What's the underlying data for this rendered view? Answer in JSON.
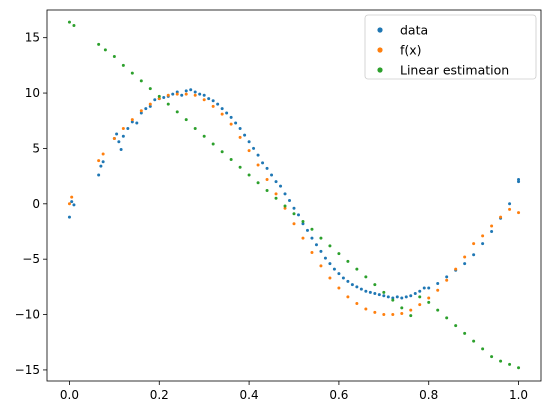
{
  "chart_data": {
    "type": "scatter",
    "title": "",
    "xlabel": "",
    "ylabel": "",
    "xlim": [
      -0.05,
      1.05
    ],
    "ylim": [
      -16.0,
      17.5
    ],
    "xticks": [
      0.0,
      0.2,
      0.4,
      0.6,
      0.8,
      1.0
    ],
    "xtick_labels": [
      "0.0",
      "0.2",
      "0.4",
      "0.6",
      "0.8",
      "1.0"
    ],
    "yticks": [
      15,
      10,
      5,
      0,
      -5,
      -10,
      -15
    ],
    "ytick_labels": [
      "15",
      "10",
      "5",
      "0",
      "−5",
      "−10",
      "−15"
    ],
    "grid": false,
    "legend_position": "top-right",
    "series": [
      {
        "name": "data",
        "color": "#1f77b4",
        "points": [
          [
            0.0,
            -1.2
          ],
          [
            0.005,
            0.2
          ],
          [
            0.01,
            -0.1
          ],
          [
            0.065,
            2.6
          ],
          [
            0.07,
            3.4
          ],
          [
            0.075,
            3.8
          ],
          [
            0.1,
            5.9
          ],
          [
            0.105,
            6.3
          ],
          [
            0.11,
            5.6
          ],
          [
            0.115,
            4.9
          ],
          [
            0.12,
            6.1
          ],
          [
            0.13,
            6.8
          ],
          [
            0.14,
            7.4
          ],
          [
            0.15,
            7.3
          ],
          [
            0.16,
            8.2
          ],
          [
            0.17,
            8.6
          ],
          [
            0.18,
            8.8
          ],
          [
            0.19,
            9.4
          ],
          [
            0.2,
            9.5
          ],
          [
            0.21,
            9.6
          ],
          [
            0.22,
            9.7
          ],
          [
            0.23,
            9.9
          ],
          [
            0.24,
            10.1
          ],
          [
            0.25,
            9.8
          ],
          [
            0.26,
            10.2
          ],
          [
            0.27,
            10.3
          ],
          [
            0.28,
            10.1
          ],
          [
            0.29,
            9.9
          ],
          [
            0.3,
            9.8
          ],
          [
            0.31,
            9.5
          ],
          [
            0.32,
            9.3
          ],
          [
            0.33,
            9.0
          ],
          [
            0.34,
            8.6
          ],
          [
            0.35,
            8.2
          ],
          [
            0.36,
            7.8
          ],
          [
            0.37,
            7.3
          ],
          [
            0.38,
            6.8
          ],
          [
            0.39,
            6.2
          ],
          [
            0.4,
            5.6
          ],
          [
            0.41,
            5.0
          ],
          [
            0.42,
            4.4
          ],
          [
            0.43,
            3.7
          ],
          [
            0.44,
            3.2
          ],
          [
            0.45,
            2.6
          ],
          [
            0.46,
            2.0
          ],
          [
            0.47,
            1.6
          ],
          [
            0.48,
            0.9
          ],
          [
            0.49,
            0.3
          ],
          [
            0.5,
            -0.4
          ],
          [
            0.51,
            -1.0
          ],
          [
            0.52,
            -1.8
          ],
          [
            0.53,
            -2.4
          ],
          [
            0.54,
            -3.1
          ],
          [
            0.55,
            -3.7
          ],
          [
            0.56,
            -4.3
          ],
          [
            0.57,
            -4.9
          ],
          [
            0.58,
            -5.4
          ],
          [
            0.59,
            -5.9
          ],
          [
            0.6,
            -6.3
          ],
          [
            0.61,
            -6.7
          ],
          [
            0.62,
            -7.0
          ],
          [
            0.63,
            -7.3
          ],
          [
            0.64,
            -7.5
          ],
          [
            0.65,
            -7.7
          ],
          [
            0.66,
            -7.9
          ],
          [
            0.67,
            -8.0
          ],
          [
            0.68,
            -8.1
          ],
          [
            0.69,
            -8.2
          ],
          [
            0.7,
            -8.3
          ],
          [
            0.71,
            -8.4
          ],
          [
            0.72,
            -8.5
          ],
          [
            0.73,
            -8.4
          ],
          [
            0.74,
            -8.5
          ],
          [
            0.75,
            -8.4
          ],
          [
            0.76,
            -8.3
          ],
          [
            0.77,
            -8.1
          ],
          [
            0.78,
            -7.9
          ],
          [
            0.79,
            -7.6
          ],
          [
            0.8,
            -7.6
          ],
          [
            0.82,
            -7.2
          ],
          [
            0.84,
            -6.6
          ],
          [
            0.86,
            -6.0
          ],
          [
            0.88,
            -5.4
          ],
          [
            0.9,
            -4.6
          ],
          [
            0.92,
            -3.6
          ],
          [
            0.94,
            -2.5
          ],
          [
            0.96,
            -1.3
          ],
          [
            0.98,
            0.0
          ],
          [
            1.0,
            2.0
          ],
          [
            1.0,
            2.2
          ]
        ]
      },
      {
        "name": "f(x)",
        "color": "#ff7f0e",
        "points": [
          [
            0.0,
            0.0
          ],
          [
            0.005,
            0.6
          ],
          [
            0.065,
            3.9
          ],
          [
            0.075,
            4.5
          ],
          [
            0.1,
            5.9
          ],
          [
            0.12,
            6.8
          ],
          [
            0.14,
            7.6
          ],
          [
            0.16,
            8.4
          ],
          [
            0.18,
            9.0
          ],
          [
            0.2,
            9.5
          ],
          [
            0.22,
            9.8
          ],
          [
            0.24,
            9.9
          ],
          [
            0.26,
            9.9
          ],
          [
            0.28,
            9.8
          ],
          [
            0.3,
            9.4
          ],
          [
            0.32,
            8.8
          ],
          [
            0.34,
            8.1
          ],
          [
            0.36,
            7.2
          ],
          [
            0.38,
            6.0
          ],
          [
            0.4,
            4.8
          ],
          [
            0.42,
            3.5
          ],
          [
            0.44,
            2.2
          ],
          [
            0.46,
            0.9
          ],
          [
            0.48,
            -0.4
          ],
          [
            0.5,
            -1.8
          ],
          [
            0.52,
            -3.1
          ],
          [
            0.54,
            -4.4
          ],
          [
            0.56,
            -5.6
          ],
          [
            0.58,
            -6.7
          ],
          [
            0.6,
            -7.6
          ],
          [
            0.62,
            -8.4
          ],
          [
            0.64,
            -9.0
          ],
          [
            0.66,
            -9.5
          ],
          [
            0.68,
            -9.8
          ],
          [
            0.7,
            -10.0
          ],
          [
            0.72,
            -10.0
          ],
          [
            0.74,
            -9.9
          ],
          [
            0.76,
            -9.6
          ],
          [
            0.78,
            -9.1
          ],
          [
            0.8,
            -8.5
          ],
          [
            0.82,
            -7.8
          ],
          [
            0.84,
            -6.9
          ],
          [
            0.86,
            -5.9
          ],
          [
            0.88,
            -4.8
          ],
          [
            0.9,
            -3.6
          ],
          [
            0.92,
            -2.9
          ],
          [
            0.94,
            -2.0
          ],
          [
            0.96,
            -1.2
          ],
          [
            0.98,
            -0.5
          ],
          [
            1.0,
            -0.8
          ]
        ]
      },
      {
        "name": "Linear estimation",
        "color": "#2ca02c",
        "points": [
          [
            0.0,
            16.4
          ],
          [
            0.01,
            16.1
          ],
          [
            0.065,
            14.4
          ],
          [
            0.08,
            13.9
          ],
          [
            0.1,
            13.3
          ],
          [
            0.12,
            12.5
          ],
          [
            0.14,
            11.8
          ],
          [
            0.16,
            11.1
          ],
          [
            0.18,
            10.4
          ],
          [
            0.2,
            9.7
          ],
          [
            0.22,
            9.0
          ],
          [
            0.24,
            8.3
          ],
          [
            0.26,
            7.6
          ],
          [
            0.28,
            6.8
          ],
          [
            0.3,
            6.1
          ],
          [
            0.32,
            5.4
          ],
          [
            0.34,
            4.7
          ],
          [
            0.36,
            4.0
          ],
          [
            0.38,
            3.3
          ],
          [
            0.4,
            2.6
          ],
          [
            0.42,
            1.9
          ],
          [
            0.44,
            1.2
          ],
          [
            0.46,
            0.5
          ],
          [
            0.48,
            -0.2
          ],
          [
            0.5,
            -0.9
          ],
          [
            0.52,
            -1.6
          ],
          [
            0.54,
            -2.3
          ],
          [
            0.56,
            -3.1
          ],
          [
            0.58,
            -3.8
          ],
          [
            0.6,
            -4.5
          ],
          [
            0.62,
            -5.2
          ],
          [
            0.64,
            -5.9
          ],
          [
            0.66,
            -6.6
          ],
          [
            0.68,
            -7.3
          ],
          [
            0.7,
            -8.0
          ],
          [
            0.72,
            -8.7
          ],
          [
            0.74,
            -9.4
          ],
          [
            0.76,
            -10.1
          ],
          [
            0.78,
            -8.4
          ],
          [
            0.8,
            -8.9
          ],
          [
            0.82,
            -9.6
          ],
          [
            0.84,
            -10.3
          ],
          [
            0.86,
            -11.0
          ],
          [
            0.88,
            -11.7
          ],
          [
            0.9,
            -12.4
          ],
          [
            0.92,
            -13.1
          ],
          [
            0.94,
            -13.8
          ],
          [
            0.96,
            -14.2
          ],
          [
            0.98,
            -14.5
          ],
          [
            1.0,
            -14.8
          ]
        ]
      }
    ]
  }
}
